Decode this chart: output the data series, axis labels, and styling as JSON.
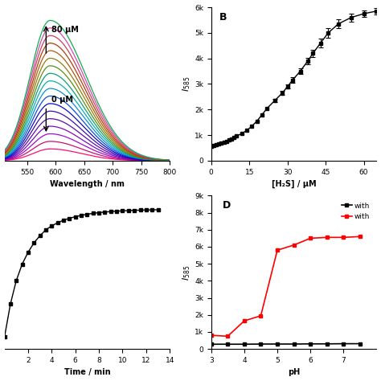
{
  "panel_A": {
    "wavelength_start": 510,
    "wavelength_end": 800,
    "peak_wavelength": 590,
    "num_curves": 18,
    "colors_bottom_to_top": [
      "#FF0066",
      "#CC0066",
      "#9900CC",
      "#7700BB",
      "#5500AA",
      "#3300AA",
      "#0000CC",
      "#0044DD",
      "#0088CC",
      "#00AAAA",
      "#009977",
      "#558800",
      "#887700",
      "#AA5500",
      "#AA3300",
      "#CC3355",
      "#CC44AA",
      "#00AA44"
    ],
    "label_80": "80 μM",
    "label_0": "0 μM",
    "xlabel": "Wavelength / nm",
    "xticks": [
      550,
      600,
      650,
      700,
      750,
      800
    ],
    "xlim": [
      510,
      800
    ],
    "ylim": [
      0,
      1.05
    ]
  },
  "panel_B": {
    "h2s_conc": [
      0,
      1,
      2,
      3,
      4,
      5,
      6,
      7,
      8,
      9,
      10,
      12,
      14,
      16,
      18,
      20,
      22,
      25,
      28,
      30,
      32,
      35,
      38,
      40,
      43,
      46,
      50,
      55,
      60,
      65
    ],
    "intensity": [
      550,
      580,
      610,
      640,
      680,
      720,
      760,
      800,
      850,
      900,
      960,
      1060,
      1180,
      1350,
      1550,
      1800,
      2050,
      2350,
      2650,
      2900,
      3150,
      3500,
      3900,
      4200,
      4600,
      5000,
      5350,
      5600,
      5750,
      5850
    ],
    "ylabel": "$I_{585}$",
    "xlabel": "[H₂S] / μM",
    "ylim": [
      0,
      6000
    ],
    "yticks": [
      0,
      1000,
      2000,
      3000,
      4000,
      5000,
      6000
    ],
    "ytick_labels": [
      "0",
      "1k",
      "2k",
      "3k",
      "4k",
      "5k",
      "6k"
    ],
    "xlim": [
      0,
      65
    ],
    "xticks": [
      0,
      15,
      30,
      45,
      60
    ],
    "label": "B",
    "err_x": [
      25,
      28,
      30,
      32,
      35,
      38,
      40,
      43,
      46,
      50,
      55,
      60,
      65
    ],
    "err_y": [
      2350,
      2650,
      2900,
      3150,
      3500,
      3900,
      4200,
      4600,
      5000,
      5350,
      5600,
      5750,
      5850
    ],
    "err_vals": [
      60,
      80,
      90,
      100,
      110,
      130,
      150,
      170,
      180,
      170,
      150,
      130,
      120
    ]
  },
  "panel_C": {
    "time": [
      0,
      0.5,
      1,
      1.5,
      2,
      2.5,
      3,
      3.5,
      4,
      4.5,
      5,
      5.5,
      6,
      6.5,
      7,
      7.5,
      8,
      8.5,
      9,
      9.5,
      10,
      10.5,
      11,
      11.5,
      12,
      12.5,
      13
    ],
    "intensity": [
      3000,
      4400,
      5400,
      6100,
      6600,
      7000,
      7300,
      7550,
      7720,
      7850,
      7960,
      8040,
      8110,
      8165,
      8210,
      8250,
      8280,
      8305,
      8325,
      8342,
      8356,
      8368,
      8378,
      8386,
      8393,
      8398,
      8402
    ],
    "xlabel": "Time / min",
    "xlim": [
      0,
      14
    ],
    "xticks": [
      2,
      4,
      6,
      8,
      10,
      12,
      14
    ],
    "ylim": [
      2500,
      9000
    ]
  },
  "panel_D": {
    "ph_values": [
      3.0,
      3.5,
      4.0,
      4.5,
      5.0,
      5.5,
      6.0,
      6.5,
      7.0,
      7.5
    ],
    "intensity_black": [
      280,
      280,
      280,
      290,
      290,
      290,
      300,
      300,
      310,
      310
    ],
    "intensity_red": [
      800,
      750,
      1650,
      1950,
      5800,
      6100,
      6500,
      6550,
      6550,
      6600
    ],
    "ylabel": "$I_{585}$",
    "xlabel": "pH",
    "ylim": [
      0,
      9000
    ],
    "yticks": [
      0,
      1000,
      2000,
      3000,
      4000,
      5000,
      6000,
      7000,
      8000,
      9000
    ],
    "ytick_labels": [
      "0",
      "1k",
      "2k",
      "3k",
      "4k",
      "5k",
      "6k",
      "7k",
      "8k",
      "9k"
    ],
    "xlim": [
      3,
      8
    ],
    "xticks": [
      3,
      4,
      5,
      6,
      7
    ],
    "label": "D",
    "legend_black": "with",
    "legend_red": "with"
  }
}
